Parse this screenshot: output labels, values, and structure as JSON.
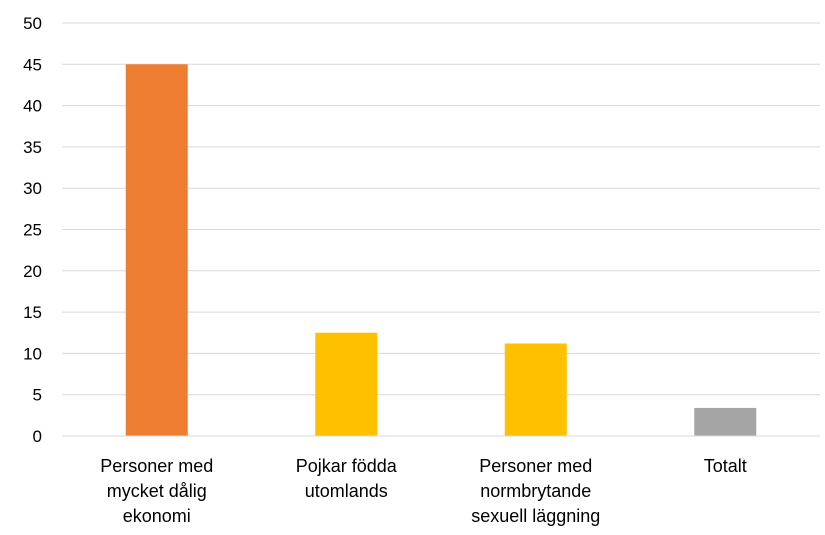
{
  "chart_data": {
    "type": "bar",
    "title": "",
    "xlabel": "",
    "ylabel": "",
    "ylim": [
      0,
      50
    ],
    "yticks": [
      0,
      5,
      10,
      15,
      20,
      25,
      30,
      35,
      40,
      45,
      50
    ],
    "grid": "horizontal",
    "legend": "none",
    "categories": [
      [
        "Personer med",
        "mycket dålig",
        "ekonomi"
      ],
      [
        "Pojkar födda",
        "utomlands"
      ],
      [
        "Personer med",
        "normbrytande",
        "sexuell läggning"
      ],
      [
        "Totalt"
      ]
    ],
    "values": [
      45,
      12.5,
      11.2,
      3.4
    ],
    "colors": [
      "#ED7D31",
      "#FFC000",
      "#FFC000",
      "#A5A5A5"
    ],
    "grid_color": "#D9D9D9",
    "axis_color": "#D9D9D9"
  }
}
